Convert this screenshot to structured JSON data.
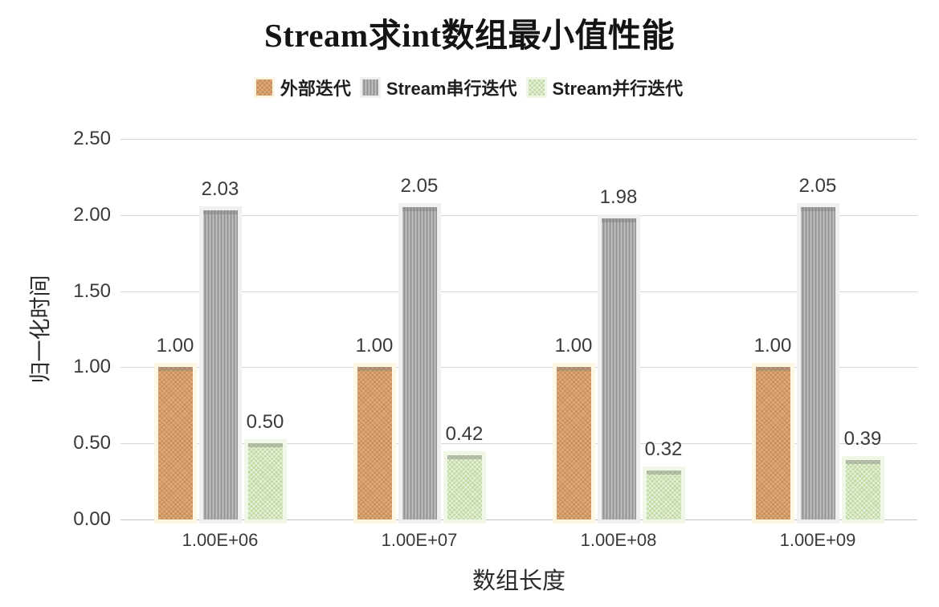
{
  "chart_data": {
    "type": "bar",
    "title": "Stream求int数组最小值性能",
    "xlabel": "数组长度",
    "ylabel": "归一化时间",
    "categories": [
      "1.00E+06",
      "1.00E+07",
      "1.00E+08",
      "1.00E+09"
    ],
    "series": [
      {
        "name": "外部迭代",
        "values": [
          1.0,
          1.0,
          1.0,
          1.0
        ],
        "labels": [
          "1.00",
          "1.00",
          "1.00",
          "1.00"
        ],
        "color": "#e1a875",
        "halo": "#fdf6e3",
        "pattern": "crosshatch"
      },
      {
        "name": "Stream串行迭代",
        "values": [
          2.03,
          2.05,
          1.98,
          2.05
        ],
        "labels": [
          "2.03",
          "2.05",
          "1.98",
          "2.05"
        ],
        "color": "#a6a6a6",
        "halo": "#f0f0f0",
        "pattern": "vertical"
      },
      {
        "name": "Stream并行迭代",
        "values": [
          0.5,
          0.42,
          0.32,
          0.39
        ],
        "labels": [
          "0.50",
          "0.42",
          "0.32",
          "0.39"
        ],
        "color": "#c2dba5",
        "halo": "#f0f7e6",
        "pattern": "diagonal"
      }
    ],
    "y_ticks": [
      "2.50",
      "2.00",
      "1.50",
      "1.00",
      "0.50",
      "0.00"
    ],
    "ylim": [
      0,
      2.5
    ],
    "grid": true,
    "legend_position": "top",
    "gridline_color": "#d8d8d8"
  }
}
